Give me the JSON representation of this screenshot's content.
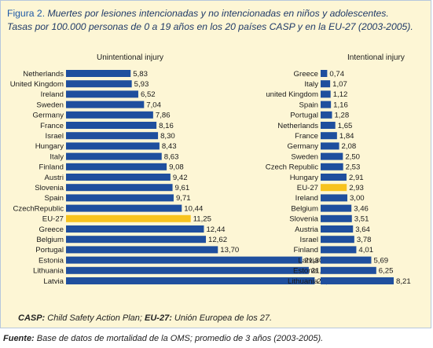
{
  "header": {
    "figure_label": "Figura 2.",
    "title": "Muertes por lesiones intencionadas y no intencionadas en niños y adolescentes.",
    "subtitle": "Tasas por 100.000 personas de 0 a 19 años en los 20 países CASP y en la EU-27 (2003-2005)."
  },
  "colors": {
    "bar": "#1f4f9e",
    "highlight": "#f7c31e",
    "panel": "#fdf6d5"
  },
  "chart_data": [
    {
      "type": "bar",
      "orientation": "horizontal",
      "title": "Unintentional injury",
      "highlight": "EU-27",
      "categories": [
        "Netherlands",
        "United Kingdom",
        "Ireland",
        "Sweden",
        "Germany",
        "France",
        "Israel",
        "Hungary",
        "Italy",
        "Finland",
        "Austri",
        "Slovenia",
        "Spain",
        "CzechRepublic",
        "EU-27",
        "Greece",
        "Belgium",
        "Portugal",
        "Estonia",
        "Lithuania",
        "Latvia"
      ],
      "values": [
        5.83,
        5.93,
        6.52,
        7.04,
        7.86,
        8.16,
        8.3,
        8.43,
        8.63,
        9.08,
        9.42,
        9.61,
        9.71,
        10.44,
        11.25,
        12.44,
        12.62,
        13.7,
        21.3,
        21.9,
        22.43
      ],
      "value_labels": [
        "5,83",
        "5,93",
        "6,52",
        "7,04",
        "7,86",
        "8,16",
        "8,30",
        "8,43",
        "8,63",
        "9,08",
        "9,42",
        "9,61",
        "9,71",
        "10,44",
        "11,25",
        "12,44",
        "12,62",
        "13,70",
        "21,30",
        "21,90",
        "22,43"
      ],
      "xlim": [
        0,
        25
      ]
    },
    {
      "type": "bar",
      "orientation": "horizontal",
      "title": "Intentional injury",
      "highlight": "EU-27",
      "categories": [
        "Greece",
        "Italy",
        "united Kingdom",
        "Spain",
        "Portugal",
        "Netherlands",
        "France",
        "Germany",
        "Sweden",
        "Czech Republic",
        "Hungary",
        "EU-27",
        "Ireland",
        "Belgium",
        "Slovenia",
        "Austria",
        "Israel",
        "Finland",
        "Latvia",
        "Estonia",
        "Lithuania"
      ],
      "values": [
        0.74,
        1.07,
        1.12,
        1.16,
        1.28,
        1.65,
        1.84,
        2.08,
        2.5,
        2.53,
        2.91,
        2.93,
        3.0,
        3.46,
        3.51,
        3.64,
        3.78,
        4.01,
        5.69,
        6.25,
        8.21
      ],
      "value_labels": [
        "0,74",
        "1,07",
        "1,12",
        "1,16",
        "1,28",
        "1,65",
        "1,84",
        "2,08",
        "2,50",
        "2,53",
        "2,91",
        "2,93",
        "3,00",
        "3,46",
        "3,51",
        "3,64",
        "3,78",
        "4,01",
        "5,69",
        "6,25",
        "8,21"
      ],
      "xlim": [
        0,
        9
      ]
    }
  ],
  "notes": {
    "casp_abbr": "CASP:",
    "casp_text": " Child Safety Action Plan; ",
    "eu_abbr": "EU-27:",
    "eu_text": " Unión Europea de los 27."
  },
  "source": {
    "label": "Fuente:",
    "text": " Base de datos de mortalidad de la OMS; promedio de 3 años (2003-2005)."
  }
}
